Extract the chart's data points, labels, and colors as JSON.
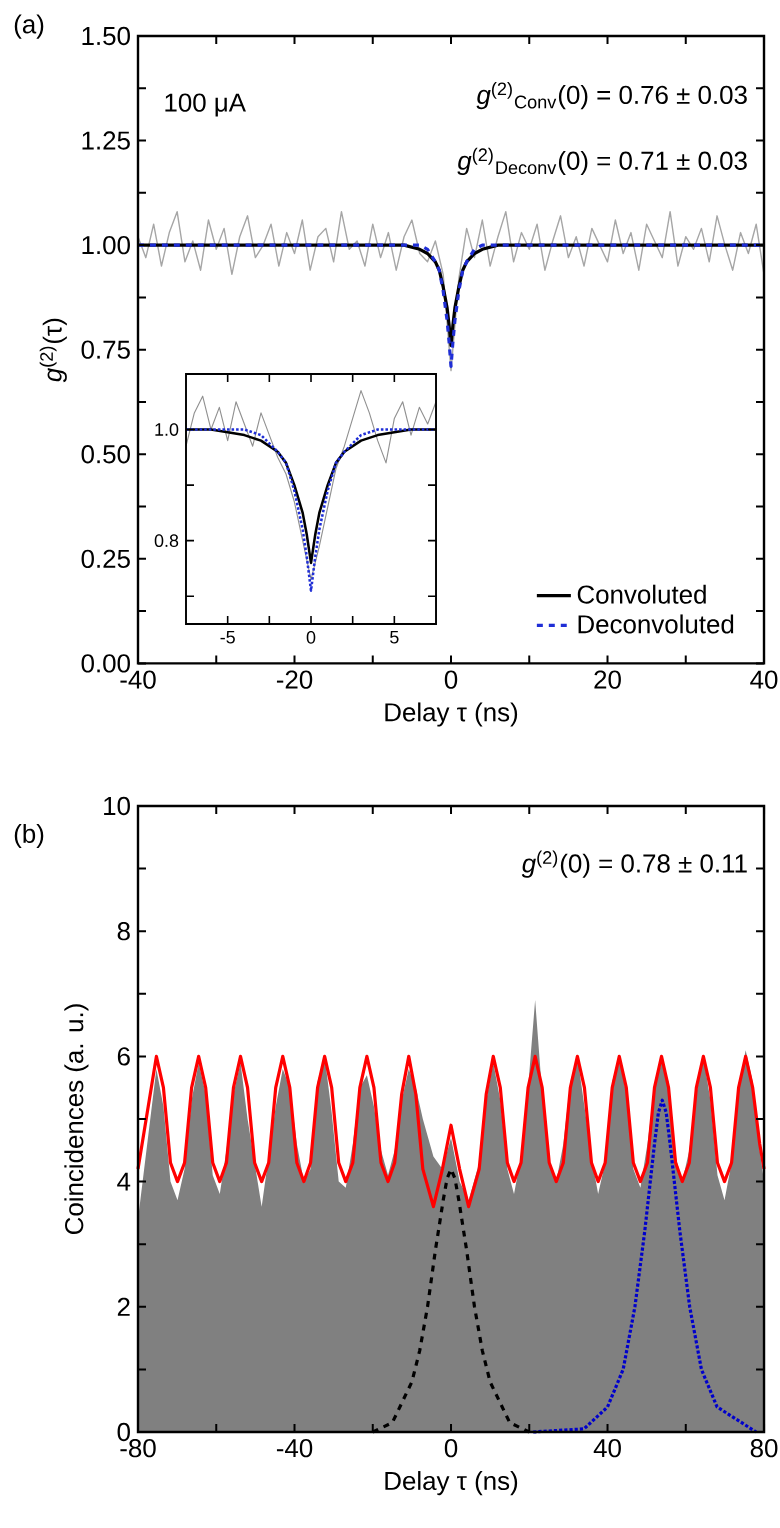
{
  "chart_data": [
    {
      "type": "line",
      "xlabel": "Delay τ (ns)",
      "ylabel": "*g*$^{(2)}$(τ)",
      "marker": "none",
      "legend": "bottom right",
      "annotations": [
        "(a)",
        "100 μA",
        "*g*$^{(2)}$$_{Conv}$(0) = 0.76 ± 0.03",
        "*g*$^{(2)}$$_{Deconv}$(0) = 0.71 ± 0.03"
      ],
      "xlim": [
        -40,
        40
      ],
      "ylim": [
        0,
        1.5
      ],
      "xticks": [
        -40,
        {
          "value": -30,
          "label": null
        },
        -20,
        {
          "value": -10,
          "label": null
        },
        0,
        {
          "value": 10,
          "label": null
        },
        20,
        {
          "value": 30,
          "label": null
        },
        40
      ],
      "yticks": [
        {
          "value": 0,
          "label": "0.00"
        },
        {
          "value": 0.125,
          "label": null
        },
        0.25,
        {
          "value": 0.375,
          "label": null
        },
        {
          "value": 0.5,
          "label": "0.50"
        },
        {
          "value": 0.625,
          "label": null
        },
        0.75,
        {
          "value": 0.875,
          "label": null
        },
        {
          "value": 1,
          "label": "1.00"
        },
        {
          "value": 1.125,
          "label": null
        },
        1.25,
        {
          "value": 1.375,
          "label": null
        },
        {
          "value": 1.5,
          "label": "1.50"
        }
      ],
      "series": [
        {
          "color": "#a6a6a6",
          "line_style": "solid",
          "x": [
            -40,
            -39,
            -38,
            -37,
            -36,
            -35,
            -34,
            -33,
            -32,
            -31,
            -30,
            -29,
            -28,
            -27,
            -26,
            -25,
            -24,
            -23,
            -22,
            -21,
            -20,
            -19,
            -18,
            -17,
            -16,
            -15,
            -14,
            -13,
            -12,
            -11,
            -10,
            -9,
            -8,
            -7,
            -6,
            -5,
            -4,
            -3,
            -2,
            -1,
            0,
            1,
            2,
            3,
            4,
            5,
            6,
            7,
            8,
            9,
            10,
            11,
            12,
            13,
            14,
            15,
            16,
            17,
            18,
            19,
            20,
            21,
            22,
            23,
            24,
            25,
            26,
            27,
            28,
            29,
            30,
            31,
            32,
            33,
            34,
            35,
            36,
            37,
            38,
            39,
            40
          ],
          "values": [
            1.02,
            0.97,
            1.05,
            0.95,
            1.03,
            1.08,
            0.96,
            1.01,
            0.94,
            1.06,
            0.99,
            1.04,
            0.93,
            1.02,
            1.07,
            0.97,
            1.0,
            1.05,
            0.95,
            1.03,
            0.98,
            1.06,
            0.94,
            1.02,
            1.04,
            0.96,
            1.08,
            0.99,
            1.01,
            0.95,
            1.05,
            0.97,
            1.03,
            0.94,
            1.02,
            1.06,
            0.98,
            0.96,
            1.01,
            0.93,
            0.7,
            0.92,
            1.04,
            0.97,
            1.06,
            0.95,
            1.02,
            1.08,
            0.96,
            1.03,
            0.99,
            1.05,
            0.94,
            1.01,
            1.07,
            0.97,
            1.02,
            0.95,
            1.04,
            1.0,
            0.96,
            1.06,
            0.98,
            1.03,
            0.94,
            1.05,
            1.01,
            0.97,
            1.08,
            0.95,
            1.02,
            0.99,
            1.04,
            0.96,
            1.07,
            1.0,
            0.94,
            1.03,
            0.98,
            1.05,
            0.93
          ]
        },
        {
          "name": "Convoluted",
          "color": "#000000",
          "line_style": "solid",
          "x": [
            -40,
            -8,
            -6,
            -4,
            -3,
            -2,
            -1.5,
            -1,
            -0.5,
            -0.25,
            0,
            0.25,
            0.5,
            1,
            1.5,
            2,
            3,
            4,
            6,
            8,
            40
          ],
          "values": [
            1,
            1,
            1,
            0.99,
            0.98,
            0.96,
            0.94,
            0.9,
            0.85,
            0.81,
            0.76,
            0.81,
            0.85,
            0.9,
            0.94,
            0.96,
            0.98,
            0.99,
            1,
            1,
            1
          ]
        },
        {
          "name": "Deconvoluted",
          "color": "#1f2ed6",
          "line_style": "dashed",
          "x": [
            -40,
            -8,
            -6,
            -4,
            -3,
            -2,
            -1.5,
            -1,
            -0.5,
            -0.25,
            0,
            0.25,
            0.5,
            1,
            1.5,
            2,
            3,
            4,
            6,
            8,
            40
          ],
          "values": [
            1,
            1,
            1,
            1,
            0.99,
            0.96,
            0.94,
            0.89,
            0.82,
            0.77,
            0.71,
            0.77,
            0.82,
            0.89,
            0.94,
            0.96,
            0.99,
            1,
            1,
            1,
            1
          ]
        }
      ]
    },
    {
      "type": "line",
      "marker": "none",
      "xlim": [
        -7.5,
        7.5
      ],
      "ylim": [
        0.65,
        1.1
      ],
      "xticks": [
        -5,
        {
          "value": -2.5,
          "label": null
        },
        0,
        {
          "value": 2.5,
          "label": null
        },
        5
      ],
      "yticks": [
        {
          "value": 0.7,
          "label": null
        },
        0.8,
        {
          "value": 0.9,
          "label": null
        },
        {
          "value": 1,
          "label": "1.0"
        }
      ],
      "series": [
        {
          "color": "#909090",
          "line_style": "solid",
          "x": [
            -7.5,
            -7,
            -6.5,
            -6,
            -5.5,
            -5,
            -4.5,
            -4,
            -3.5,
            -3,
            -2.5,
            -2,
            -1.5,
            -1,
            -0.5,
            0,
            0.5,
            1,
            1.5,
            2,
            2.5,
            3,
            3.5,
            4,
            4.5,
            5,
            5.5,
            6,
            6.5,
            7,
            7.5
          ],
          "values": [
            0.97,
            1.03,
            1.06,
            1.0,
            1.04,
            0.98,
            1.05,
            1.01,
            0.97,
            1.03,
            0.99,
            0.95,
            0.92,
            0.87,
            0.8,
            0.73,
            0.79,
            0.86,
            0.93,
            0.97,
            1.02,
            1.07,
            1.03,
            0.98,
            0.94,
            1.02,
            1.05,
            0.99,
            1.04,
            1.01,
            1.05
          ]
        },
        {
          "color": "#000000",
          "line_style": "solid",
          "x": [
            -7.5,
            -6,
            -4,
            -3,
            -2,
            -1.5,
            -1,
            -0.5,
            -0.25,
            0,
            0.25,
            0.5,
            1,
            1.5,
            2,
            3,
            4,
            6,
            7.5
          ],
          "values": [
            1,
            1,
            0.99,
            0.98,
            0.96,
            0.94,
            0.9,
            0.85,
            0.81,
            0.76,
            0.81,
            0.85,
            0.9,
            0.94,
            0.96,
            0.98,
            0.99,
            1,
            1
          ]
        },
        {
          "color": "#1f2ed6",
          "line_style": "dotted",
          "x": [
            -7.5,
            -6,
            -4,
            -3,
            -2,
            -1.5,
            -1,
            -0.5,
            -0.25,
            0,
            0.25,
            0.5,
            1,
            1.5,
            2,
            3,
            4,
            6,
            7.5
          ],
          "values": [
            1,
            1,
            1,
            0.99,
            0.96,
            0.94,
            0.89,
            0.82,
            0.77,
            0.71,
            0.77,
            0.82,
            0.89,
            0.94,
            0.96,
            0.99,
            1,
            1,
            1
          ]
        }
      ]
    },
    {
      "type": "line",
      "xlabel": "Delay τ (ns)",
      "ylabel": "Coincidences (a. u.)",
      "marker": "none",
      "annotations": [
        "(b)",
        "*g*$^{(2)}$(0) = 0.78 ± 0.11"
      ],
      "xlim": [
        -80,
        80
      ],
      "ylim": [
        0,
        10
      ],
      "xticks": [
        -80,
        {
          "value": -60,
          "label": null
        },
        -40,
        {
          "value": -20,
          "label": null
        },
        0,
        {
          "value": 20,
          "label": null
        },
        40,
        {
          "value": 60,
          "label": null
        },
        80
      ],
      "yticks": [
        0,
        {
          "value": 1,
          "label": null
        },
        2,
        {
          "value": 3,
          "label": null
        },
        4,
        {
          "value": 5,
          "label": null
        },
        6,
        {
          "value": 7,
          "label": null
        },
        8,
        {
          "value": 9,
          "label": null
        },
        10
      ],
      "series": [
        {
          "type": "area",
          "color": "#808080",
          "x": [
            -80,
            -75.3,
            -73.5,
            -71.7,
            -69.9,
            -68.1,
            -66.3,
            -64.5,
            -62.7,
            -60.9,
            -59.1,
            -57.4,
            -55.6,
            -53.8,
            -52.0,
            -50.2,
            -48.4,
            -46.6,
            -44.8,
            -43.0,
            -41.2,
            -39.4,
            -37.6,
            -35.9,
            -34.1,
            -32.3,
            -30.5,
            -28.7,
            -26.9,
            -25.1,
            -23.3,
            -21.5,
            -19.7,
            -17.9,
            -16.1,
            -14.4,
            -12.6,
            -10.8,
            -9.0,
            -7.2,
            -4.5,
            -2.2,
            0,
            2.2,
            4.5,
            7.2,
            9.0,
            10.8,
            12.6,
            14.4,
            16.1,
            17.9,
            19.7,
            21.5,
            23.3,
            25.1,
            26.9,
            28.7,
            30.5,
            32.3,
            34.1,
            35.9,
            37.6,
            39.4,
            41.2,
            43.0,
            44.8,
            46.6,
            48.4,
            50.2,
            52.0,
            53.8,
            55.6,
            57.4,
            59.1,
            60.9,
            62.7,
            64.5,
            66.3,
            68.1,
            69.9,
            71.7,
            73.5,
            75.3,
            77.1,
            78.9,
            80
          ],
          "values": [
            3.4,
            5.8,
            5.2,
            4.0,
            3.7,
            4.2,
            5.3,
            5.9,
            5.4,
            4.1,
            3.8,
            4.5,
            5.4,
            5.9,
            5.0,
            4.3,
            3.6,
            4.4,
            5.2,
            5.8,
            5.5,
            4.6,
            4.0,
            4.2,
            5.6,
            6.0,
            5.1,
            4.0,
            3.9,
            4.6,
            5.5,
            5.7,
            5.2,
            4.5,
            4.1,
            4.5,
            5.3,
            5.8,
            5.5,
            5.0,
            4.4,
            4.2,
            4.7,
            4.0,
            3.7,
            4.3,
            5.3,
            5.9,
            5.3,
            4.2,
            3.8,
            4.4,
            5.5,
            6.9,
            5.4,
            4.3,
            4.0,
            4.6,
            5.6,
            6.0,
            5.2,
            4.4,
            3.8,
            4.3,
            5.6,
            6.0,
            5.4,
            4.2,
            3.9,
            4.6,
            5.5,
            5.9,
            5.6,
            4.4,
            4.0,
            4.5,
            5.4,
            6.0,
            5.3,
            4.1,
            3.7,
            4.3,
            5.5,
            6.1,
            5.6,
            4.5,
            4.0
          ]
        },
        {
          "type": "line",
          "color": "#ff0000",
          "line_style": "solid",
          "x": [
            -80,
            -75.3,
            -73.5,
            -71.7,
            -69.9,
            -68.1,
            -66.3,
            -64.5,
            -62.7,
            -60.9,
            -59.1,
            -57.4,
            -55.6,
            -53.8,
            -52.0,
            -50.2,
            -48.4,
            -46.6,
            -44.8,
            -43.0,
            -41.2,
            -39.4,
            -37.6,
            -35.9,
            -34.1,
            -32.3,
            -30.5,
            -28.7,
            -26.9,
            -25.1,
            -23.3,
            -21.5,
            -19.7,
            -17.9,
            -16.1,
            -14.4,
            -12.6,
            -10.8,
            -9.0,
            -7.2,
            -4.5,
            -2.2,
            0,
            2.2,
            4.5,
            7.2,
            9.0,
            10.8,
            12.6,
            14.4,
            16.1,
            17.9,
            19.7,
            21.5,
            23.3,
            25.1,
            26.9,
            28.7,
            30.5,
            32.3,
            34.1,
            35.9,
            37.6,
            39.4,
            41.2,
            43.0,
            44.8,
            46.6,
            48.4,
            50.2,
            52.0,
            53.8,
            55.6,
            57.4,
            59.1,
            60.9,
            62.7,
            64.5,
            66.3,
            68.1,
            69.9,
            71.7,
            73.5,
            75.3,
            77.1,
            78.9,
            80
          ],
          "values": [
            4.2,
            6,
            5.5,
            4.3,
            4.0,
            4.3,
            5.5,
            6,
            5.5,
            4.3,
            4.0,
            4.3,
            5.5,
            6,
            5.5,
            4.3,
            4.0,
            4.3,
            5.5,
            6,
            5.5,
            4.3,
            4.0,
            4.3,
            5.5,
            6,
            5.5,
            4.3,
            4.0,
            4.3,
            5.5,
            6,
            5.5,
            4.3,
            4.0,
            4.3,
            5.4,
            6,
            5.4,
            4.2,
            3.6,
            4.2,
            4.9,
            4.2,
            3.6,
            4.2,
            5.4,
            6,
            5.5,
            4.3,
            4.0,
            4.3,
            5.5,
            6,
            5.5,
            4.3,
            4.0,
            4.3,
            5.5,
            6,
            5.5,
            4.3,
            4.0,
            4.3,
            5.5,
            6,
            5.5,
            4.3,
            4.0,
            4.3,
            5.5,
            6,
            5.5,
            4.3,
            4.0,
            4.3,
            5.5,
            6,
            5.5,
            4.3,
            4.0,
            4.3,
            5.5,
            6,
            5.5,
            4.6,
            4.2
          ]
        },
        {
          "type": "line",
          "color": "#000000",
          "line_style": "dashed",
          "x": [
            -20,
            -15,
            -10,
            -8,
            -6,
            -4,
            -2,
            -1,
            0,
            1,
            2,
            4,
            6,
            8,
            10,
            15,
            20
          ],
          "values": [
            0,
            0.15,
            0.8,
            1.3,
            2.0,
            2.9,
            3.7,
            4.05,
            4.2,
            4.05,
            3.7,
            2.9,
            2.0,
            1.3,
            0.8,
            0.15,
            0
          ]
        },
        {
          "type": "line",
          "color": "#0000cc",
          "line_style": "dotted",
          "x": [
            21,
            34,
            40,
            44,
            47,
            49.5,
            52,
            53,
            54,
            55,
            56,
            58.5,
            61,
            64,
            68,
            78
          ],
          "values": [
            0,
            0.05,
            0.4,
            1.0,
            2.0,
            3.2,
            4.6,
            5.1,
            5.3,
            5.1,
            4.6,
            3.2,
            2.0,
            1.0,
            0.4,
            0
          ]
        }
      ]
    }
  ]
}
